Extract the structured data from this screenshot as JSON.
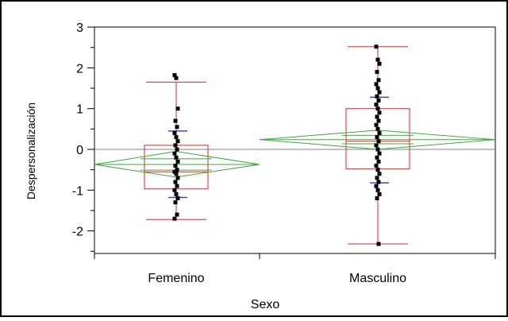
{
  "chart_data": {
    "type": "box-scatter",
    "title": "",
    "xlabel": "Sexo",
    "ylabel": "Despersonalización",
    "ylim": [
      -2.5,
      3
    ],
    "yticks": [
      "3",
      "2",
      "1",
      "0",
      "-1",
      "-2"
    ],
    "grand_mean": 0,
    "categories": [
      "Femenino",
      "Masculino"
    ],
    "groups": [
      {
        "name": "Femenino",
        "box": {
          "min": -1.72,
          "q1": -0.97,
          "median": -0.55,
          "q3": 0.1,
          "max": 1.65
        },
        "mean": -0.37,
        "ci": [
          -0.68,
          -0.05
        ],
        "std_bars": [
          -1.18,
          0.45
        ],
        "points": [
          1.82,
          1.75,
          1.0,
          0.7,
          0.55,
          0.4,
          0.3,
          0.2,
          0.1,
          0.0,
          -0.1,
          -0.2,
          -0.3,
          -0.4,
          -0.5,
          -0.55,
          -0.6,
          -0.7,
          -0.8,
          -0.9,
          -1.0,
          -1.1,
          -1.2,
          -1.3,
          -1.6,
          -1.7
        ]
      },
      {
        "name": "Masculino",
        "box": {
          "min": -2.32,
          "q1": -0.48,
          "median": 0.2,
          "q3": 1.0,
          "max": 2.52
        },
        "mean": 0.24,
        "ci": [
          0.0,
          0.47
        ],
        "std_bars": [
          -0.82,
          1.28
        ],
        "points": [
          2.52,
          2.2,
          2.1,
          1.9,
          1.7,
          1.6,
          1.5,
          1.4,
          1.3,
          1.2,
          1.1,
          1.0,
          0.9,
          0.8,
          0.7,
          0.6,
          0.5,
          0.4,
          0.3,
          0.2,
          0.1,
          0.0,
          -0.1,
          -0.2,
          -0.3,
          -0.4,
          -0.5,
          -0.6,
          -0.7,
          -0.8,
          -0.9,
          -1.0,
          -1.1,
          -1.2,
          -2.32
        ]
      }
    ]
  }
}
